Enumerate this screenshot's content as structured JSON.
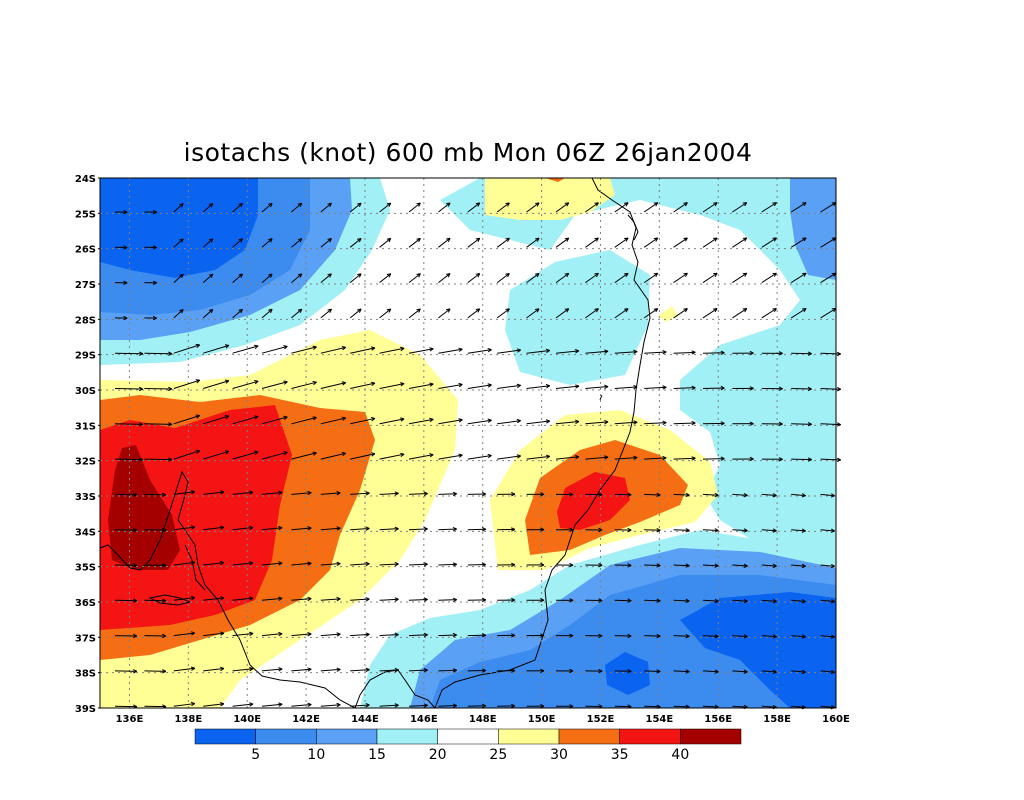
{
  "title": "isotachs (knot) 600 mb Mon 06Z 26jan2004",
  "lat_labels": [
    "24S",
    "25S",
    "26S",
    "27S",
    "28S",
    "29S",
    "30S",
    "31S",
    "32S",
    "33S",
    "34S",
    "35S",
    "36S",
    "37S",
    "38S",
    "39S"
  ],
  "lon_labels": [
    "136E",
    "138E",
    "140E",
    "142E",
    "144E",
    "146E",
    "148E",
    "150E",
    "152E",
    "154E",
    "156E",
    "158E",
    "160E"
  ],
  "map_extent": {
    "lon": [
      135,
      160
    ],
    "lat": [
      -39,
      -24
    ]
  },
  "legend": {
    "labels": [
      "5",
      "10",
      "15",
      "20",
      "25",
      "30",
      "35",
      "40"
    ],
    "colors": [
      "#0a64f0",
      "#3c8cf0",
      "#5aa0f5",
      "#a0f0f5",
      "#ffffff",
      "#ffff96",
      "#f56e14",
      "#f51414",
      "#a50000"
    ]
  },
  "contour_levels": [
    5,
    10,
    15,
    20,
    25,
    30,
    35,
    40
  ],
  "units": "knot",
  "level": "600 mb",
  "valid_time": "Mon 06Z 26jan2004"
}
